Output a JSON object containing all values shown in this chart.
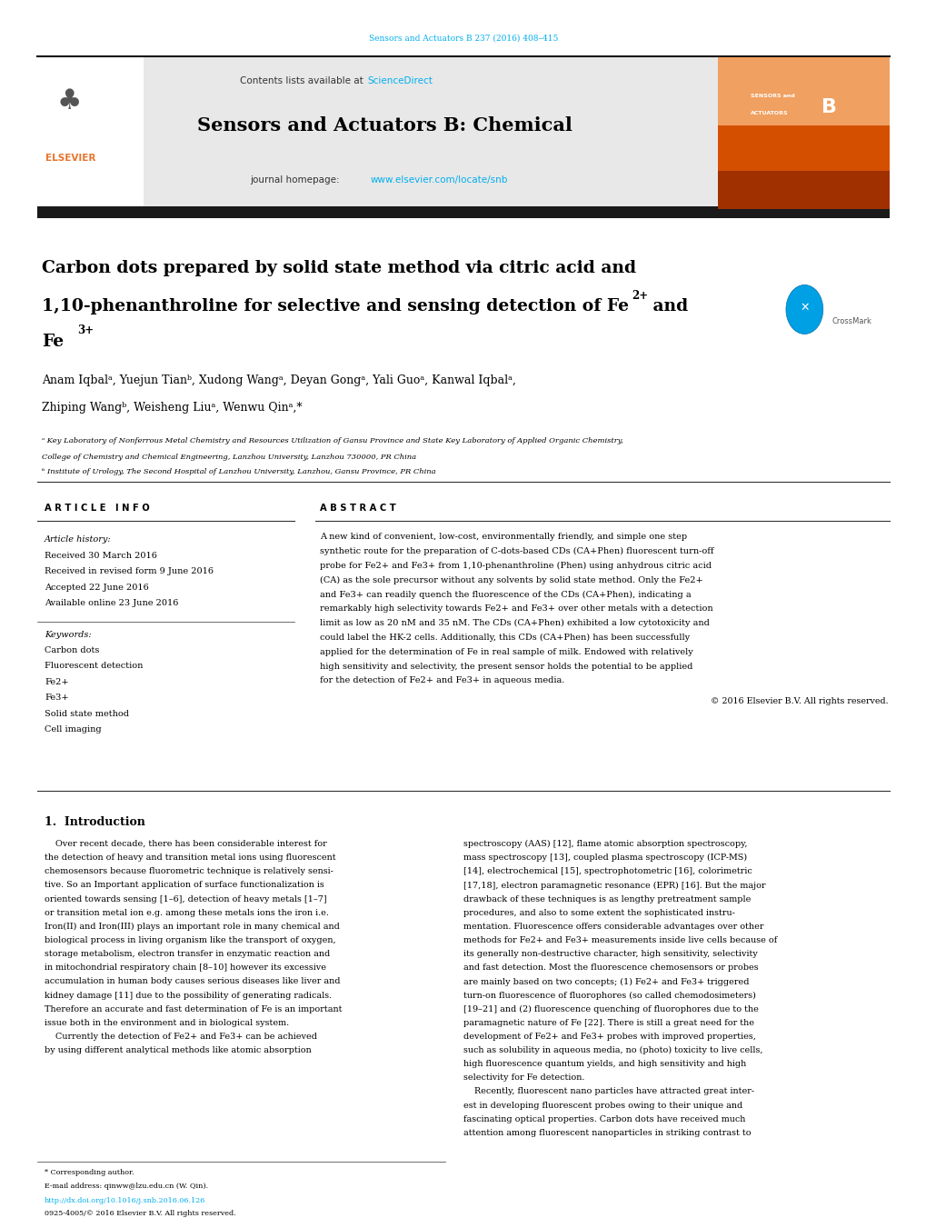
{
  "background_color": "#ffffff",
  "page_width": 10.2,
  "page_height": 13.51,
  "top_citation": "Sensors and Actuators B 237 (2016) 408–415",
  "journal_name": "Sensors and Actuators B: Chemical",
  "journal_homepage": "journal homepage: www.elsevier.com/locate/snb",
  "contents_line": "Contents lists available at ScienceDirect",
  "header_bar_color": "#2b2b2b",
  "header_bg_color": "#e8e8e8",
  "title_line1": "Carbon dots prepared by solid state method via citric acid and",
  "title_line2": "1,10-phenanthroline for selective and sensing detection of Fe",
  "title_line2_sup1": "2+",
  "title_line2_end": " and",
  "title_line3": "Fe",
  "title_line3_sup": "3+",
  "authors": "Anam Iqbalᵃ, Yuejun Tianᵇ, Xudong Wangᵃ, Deyan Gongᵃ, Yali Guoᵃ, Kanwal Iqbalᵃ,",
  "authors2": "Zhiping Wangᵇ, Weisheng Liuᵃ, Wenwu Qinᵃ,*",
  "affil_a": "ᵃ Key Laboratory of Nonferrous Metal Chemistry and Resources Utilization of Gansu Province and State Key Laboratory of Applied Organic Chemistry,",
  "affil_a2": "College of Chemistry and Chemical Engineering, Lanzhou University, Lanzhou 730000, PR China",
  "affil_b": "ᵇ Institute of Urology, The Second Hospital of Lanzhou University, Lanzhou, Gansu Province, PR China",
  "article_info_header": "A R T I C L E   I N F O",
  "abstract_header": "A B S T R A C T",
  "article_history_label": "Article history:",
  "received": "Received 30 March 2016",
  "received_revised": "Received in revised form 9 June 2016",
  "accepted": "Accepted 22 June 2016",
  "available": "Available online 23 June 2016",
  "keywords_label": "Keywords:",
  "keywords": [
    "Carbon dots",
    "Fluorescent detection",
    "Fe2+",
    "Fe3+",
    "Solid state method",
    "Cell imaging"
  ],
  "abstract_text": "A new kind of convenient, low-cost, environmentally friendly, and simple one step synthetic route for the preparation of C-dots-based CDs (CA+Phen) fluorescent turn-off probe for Fe2+ and Fe3+ from 1,10-phenanthroline (Phen) using anhydrous citric acid (CA) as the sole precursor without any solvents by solid state method. Only the Fe2+ and Fe3+ can readily quench the fluorescence of the CDs (CA+Phen), indicating a remarkably high selectivity towards Fe2+ and Fe3+ over other metals with a detection limit as low as 20 nM and 35 nM. The CDs (CA+Phen) exhibited a low cytotoxicity and could label the HK-2 cells. Additionally, this CDs (CA+Phen) has been successfully applied for the determination of Fe in real sample of milk. Endowed with relatively high sensitivity and selectivity, the present sensor holds the potential to be applied for the detection of Fe2+ and Fe3+ in aqueous media.",
  "copyright": "© 2016 Elsevier B.V. All rights reserved.",
  "section1_title": "1.  Introduction",
  "intro_col1_lines": [
    "    Over recent decade, there has been considerable interest for",
    "the detection of heavy and transition metal ions using fluorescent",
    "chemosensors because fluorometric technique is relatively sensi-",
    "tive. So an Important application of surface functionalization is",
    "oriented towards sensing [1–6], detection of heavy metals [1–7]",
    "or transition metal ion e.g. among these metals ions the iron i.e.",
    "Iron(II) and Iron(III) plays an important role in many chemical and",
    "biological process in living organism like the transport of oxygen,",
    "storage metabolism, electron transfer in enzymatic reaction and",
    "in mitochondrial respiratory chain [8–10] however its excessive",
    "accumulation in human body causes serious diseases like liver and",
    "kidney damage [11] due to the possibility of generating radicals.",
    "Therefore an accurate and fast determination of Fe is an important",
    "issue both in the environment and in biological system.",
    "    Currently the detection of Fe2+ and Fe3+ can be achieved",
    "by using different analytical methods like atomic absorption"
  ],
  "intro_col2_lines": [
    "spectroscopy (AAS) [12], flame atomic absorption spectroscopy,",
    "mass spectroscopy [13], coupled plasma spectroscopy (ICP-MS)",
    "[14], electrochemical [15], spectrophotometric [16], colorimetric",
    "[17,18], electron paramagnetic resonance (EPR) [16]. But the major",
    "drawback of these techniques is as lengthy pretreatment sample",
    "procedures, and also to some extent the sophisticated instru-",
    "mentation. Fluorescence offers considerable advantages over other",
    "methods for Fe2+ and Fe3+ measurements inside live cells because of",
    "its generally non-destructive character, high sensitivity, selectivity",
    "and fast detection. Most the fluorescence chemosensors or probes",
    "are mainly based on two concepts; (1) Fe2+ and Fe3+ triggered",
    "turn-on fluorescence of fluorophores (so called chemodosimeters)",
    "[19–21] and (2) fluorescence quenching of fluorophores due to the",
    "paramagnetic nature of Fe [22]. There is still a great need for the",
    "development of Fe2+ and Fe3+ probes with improved properties,",
    "such as solubility in aqueous media, no (photo) toxicity to live cells,",
    "high fluorescence quantum yields, and high sensitivity and high",
    "selectivity for Fe detection.",
    "    Recently, fluorescent nano particles have attracted great inter-",
    "est in developing fluorescent probes owing to their unique and",
    "fascinating optical properties. Carbon dots have received much",
    "attention among fluorescent nanoparticles in striking contrast to"
  ],
  "footer_line1": "* Corresponding author.",
  "footer_line2": "E-mail address: qinww@lzu.edu.cn (W. Qin).",
  "footer_doi": "http://dx.doi.org/10.1016/j.snb.2016.06.126",
  "footer_issn": "0925-4005/© 2016 Elsevier B.V. All rights reserved.",
  "cyan_color": "#00aeef",
  "teal_color": "#009999",
  "elsevier_orange": "#e8742a",
  "link_color": "#00aeef"
}
